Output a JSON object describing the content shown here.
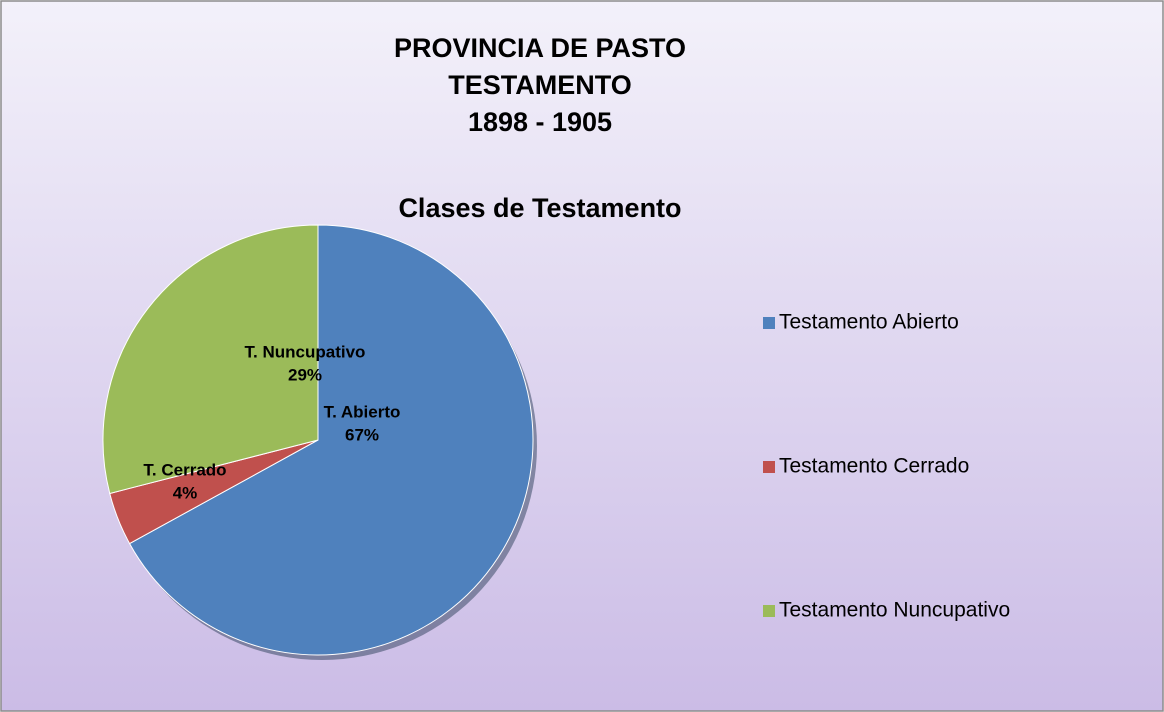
{
  "chart_data": {
    "type": "pie",
    "title": [
      "PROVINCIA DE PASTO",
      "TESTAMENTO",
      "1898 - 1905"
    ],
    "subtitle": "Clases de Testamento",
    "categories": [
      "Testamento Abierto",
      "Testamento Cerrado",
      "Testamento Nuncupativo"
    ],
    "data_label_names": [
      "T. Abierto",
      "T. Cerrado",
      "T. Nuncupativo"
    ],
    "values": [
      67,
      4,
      29
    ],
    "value_labels": [
      "67%",
      "4%",
      "29%"
    ],
    "colors": [
      "#4f81bd",
      "#c0504d",
      "#9bbb59"
    ],
    "legend": "right"
  }
}
